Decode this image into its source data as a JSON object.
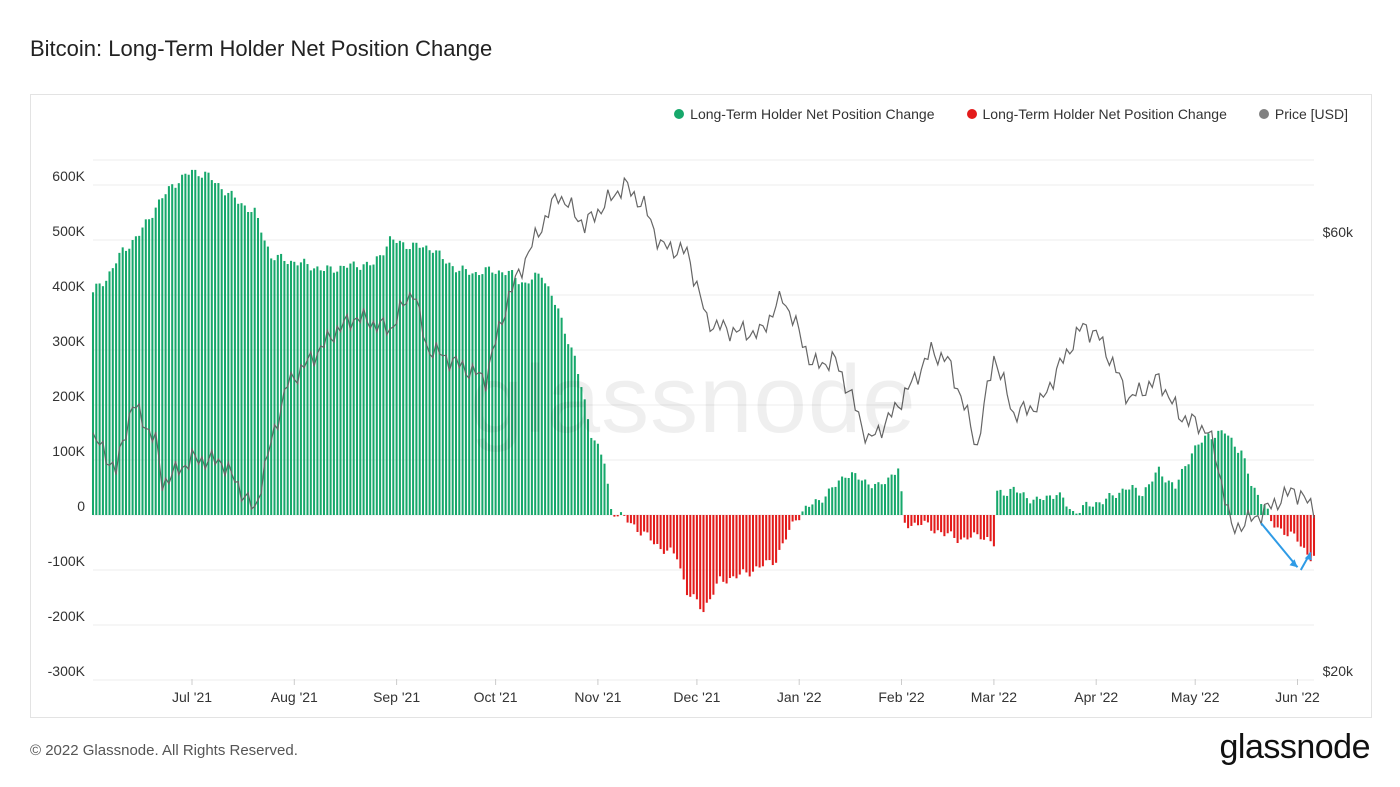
{
  "title": "Bitcoin: Long-Term Holder Net Position Change",
  "footer": "© 2022 Glassnode. All Rights Reserved.",
  "logo": "glassnode",
  "watermark": "glassnode",
  "legend": [
    {
      "label": "Long-Term Holder Net Position Change",
      "color": "#16a86b"
    },
    {
      "label": "Long-Term Holder Net Position Change",
      "color": "#e31b1b"
    },
    {
      "label": "Price [USD]",
      "color": "#808080"
    }
  ],
  "chart_data": {
    "type": "bar",
    "title": "Bitcoin: Long-Term Holder Net Position Change",
    "y_left": {
      "ticks": [
        "600K",
        "500K",
        "400K",
        "300K",
        "200K",
        "100K",
        "0",
        "-100K",
        "-200K",
        "-300K"
      ],
      "lim": [
        -300000,
        650000
      ]
    },
    "y_right": {
      "ticks": [
        "$60k",
        "$20k"
      ],
      "scale": "log",
      "lim": [
        20000,
        70000
      ]
    },
    "x_ticks": [
      "Jul '21",
      "Aug '21",
      "Sep '21",
      "Oct '21",
      "Nov '21",
      "Dec '21",
      "Jan '22",
      "Feb '22",
      "Mar '22",
      "Apr '22",
      "May '22",
      "Jun '22"
    ],
    "x_range": [
      "2021-06-01",
      "2022-06-06"
    ],
    "colors": {
      "positive": "#16a86b",
      "negative": "#e31b1b",
      "price": "#666666",
      "annotation": "#2f9be6",
      "grid": "#ececec"
    },
    "net_position_keyframes": [
      [
        "2021-06-01",
        405000
      ],
      [
        "2021-06-05",
        430000
      ],
      [
        "2021-06-10",
        480000
      ],
      [
        "2021-06-15",
        510000
      ],
      [
        "2021-06-20",
        560000
      ],
      [
        "2021-06-25",
        600000
      ],
      [
        "2021-07-01",
        625000
      ],
      [
        "2021-07-05",
        620000
      ],
      [
        "2021-07-10",
        595000
      ],
      [
        "2021-07-15",
        570000
      ],
      [
        "2021-07-20",
        550000
      ],
      [
        "2021-07-25",
        470000
      ],
      [
        "2021-08-01",
        460000
      ],
      [
        "2021-08-05",
        455000
      ],
      [
        "2021-08-10",
        445000
      ],
      [
        "2021-08-15",
        450000
      ],
      [
        "2021-08-20",
        455000
      ],
      [
        "2021-08-25",
        455000
      ],
      [
        "2021-08-30",
        500000
      ],
      [
        "2021-09-05",
        490000
      ],
      [
        "2021-09-12",
        485000
      ],
      [
        "2021-09-15",
        465000
      ],
      [
        "2021-09-20",
        445000
      ],
      [
        "2021-09-25",
        440000
      ],
      [
        "2021-09-30",
        445000
      ],
      [
        "2021-10-05",
        440000
      ],
      [
        "2021-10-10",
        420000
      ],
      [
        "2021-10-15",
        440000
      ],
      [
        "2021-10-20",
        370000
      ],
      [
        "2021-10-25",
        285000
      ],
      [
        "2021-10-30",
        150000
      ],
      [
        "2021-11-03",
        95000
      ],
      [
        "2021-11-05",
        10000
      ],
      [
        "2021-11-08",
        -2000
      ],
      [
        "2021-11-12",
        -20000
      ],
      [
        "2021-11-16",
        -40000
      ],
      [
        "2021-11-20",
        -60000
      ],
      [
        "2021-11-25",
        -75000
      ],
      [
        "2021-11-28",
        -140000
      ],
      [
        "2021-12-03",
        -172000
      ],
      [
        "2021-12-08",
        -120000
      ],
      [
        "2021-12-14",
        -110000
      ],
      [
        "2021-12-20",
        -95000
      ],
      [
        "2021-12-25",
        -80000
      ],
      [
        "2021-12-31",
        -5000
      ],
      [
        "2022-01-05",
        20000
      ],
      [
        "2022-01-10",
        40000
      ],
      [
        "2022-01-15",
        75000
      ],
      [
        "2022-01-20",
        65000
      ],
      [
        "2022-01-25",
        50000
      ],
      [
        "2022-01-31",
        85000
      ],
      [
        "2022-02-02",
        -18000
      ],
      [
        "2022-02-07",
        -15000
      ],
      [
        "2022-02-14",
        -35000
      ],
      [
        "2022-02-20",
        -45000
      ],
      [
        "2022-02-25",
        -35000
      ],
      [
        "2022-03-01",
        -55000
      ],
      [
        "2022-03-02",
        40000
      ],
      [
        "2022-03-07",
        45000
      ],
      [
        "2022-03-14",
        25000
      ],
      [
        "2022-03-20",
        40000
      ],
      [
        "2022-03-25",
        5000
      ],
      [
        "2022-03-31",
        20000
      ],
      [
        "2022-04-05",
        30000
      ],
      [
        "2022-04-10",
        50000
      ],
      [
        "2022-04-15",
        40000
      ],
      [
        "2022-04-20",
        80000
      ],
      [
        "2022-04-25",
        50000
      ],
      [
        "2022-04-30",
        115000
      ],
      [
        "2022-05-05",
        145000
      ],
      [
        "2022-05-10",
        150000
      ],
      [
        "2022-05-15",
        115000
      ],
      [
        "2022-05-18",
        55000
      ],
      [
        "2022-05-22",
        20000
      ],
      [
        "2022-05-24",
        -15000
      ],
      [
        "2022-05-28",
        -30000
      ],
      [
        "2022-06-01",
        -45000
      ],
      [
        "2022-06-05",
        -78000
      ]
    ],
    "price_keyframes": [
      [
        "2021-06-01",
        36000
      ],
      [
        "2021-06-08",
        33000
      ],
      [
        "2021-06-13",
        39000
      ],
      [
        "2021-06-20",
        35500
      ],
      [
        "2021-06-22",
        32000
      ],
      [
        "2021-07-01",
        34000
      ],
      [
        "2021-07-10",
        33800
      ],
      [
        "2021-07-20",
        29800
      ],
      [
        "2021-07-30",
        41000
      ],
      [
        "2021-08-07",
        44000
      ],
      [
        "2021-08-14",
        47000
      ],
      [
        "2021-08-20",
        48500
      ],
      [
        "2021-08-30",
        47000
      ],
      [
        "2021-09-06",
        52000
      ],
      [
        "2021-09-10",
        45000
      ],
      [
        "2021-09-20",
        43000
      ],
      [
        "2021-09-28",
        41500
      ],
      [
        "2021-10-05",
        51000
      ],
      [
        "2021-10-15",
        61000
      ],
      [
        "2021-10-20",
        66000
      ],
      [
        "2021-10-28",
        61000
      ],
      [
        "2021-11-09",
        67500
      ],
      [
        "2021-11-15",
        64000
      ],
      [
        "2021-11-20",
        58000
      ],
      [
        "2021-11-28",
        57000
      ],
      [
        "2021-12-04",
        48000
      ],
      [
        "2021-12-10",
        47000
      ],
      [
        "2021-12-20",
        46500
      ],
      [
        "2021-12-27",
        51000
      ],
      [
        "2022-01-05",
        43000
      ],
      [
        "2022-01-12",
        43500
      ],
      [
        "2022-01-22",
        35500
      ],
      [
        "2022-01-28",
        37500
      ],
      [
        "2022-02-05",
        41500
      ],
      [
        "2022-02-10",
        44500
      ],
      [
        "2022-02-15",
        43500
      ],
      [
        "2022-02-24",
        35000
      ],
      [
        "2022-03-01",
        44000
      ],
      [
        "2022-03-07",
        38000
      ],
      [
        "2022-03-15",
        39000
      ],
      [
        "2022-03-28",
        47500
      ],
      [
        "2022-04-02",
        46000
      ],
      [
        "2022-04-11",
        39500
      ],
      [
        "2022-04-20",
        41500
      ],
      [
        "2022-04-26",
        38000
      ],
      [
        "2022-05-05",
        36500
      ],
      [
        "2022-05-10",
        31000
      ],
      [
        "2022-05-12",
        28500
      ],
      [
        "2022-05-20",
        29500
      ],
      [
        "2022-05-31",
        31500
      ],
      [
        "2022-06-06",
        30000
      ]
    ],
    "annotation": "blue arrows marking recent decline"
  }
}
